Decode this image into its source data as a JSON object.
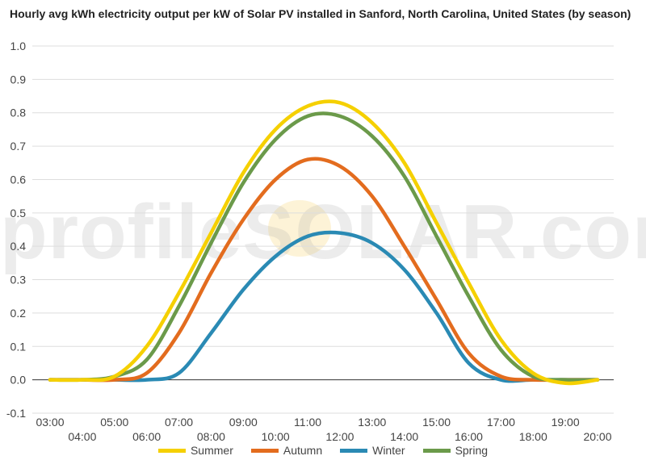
{
  "chart_data": {
    "type": "line",
    "title": "Hourly avg kWh electricity output per kW of Solar PV installed in Sanford, North Carolina, United States (by season)",
    "watermark": "profileSOLAR.com",
    "xlabel": "",
    "ylabel": "",
    "ylim": [
      -0.1,
      1.0
    ],
    "yticks": [
      "1.0",
      "0.9",
      "0.8",
      "0.7",
      "0.6",
      "0.5",
      "0.4",
      "0.3",
      "0.2",
      "0.1",
      "0.0",
      "-0.1"
    ],
    "x": [
      "03:00",
      "04:00",
      "05:00",
      "06:00",
      "07:00",
      "08:00",
      "09:00",
      "10:00",
      "11:00",
      "12:00",
      "13:00",
      "14:00",
      "15:00",
      "16:00",
      "17:00",
      "18:00",
      "19:00",
      "20:00"
    ],
    "grid": true,
    "legend_position": "bottom",
    "series": [
      {
        "name": "Summer",
        "color": "#f5d000",
        "values": [
          0.0,
          0.0,
          0.01,
          0.1,
          0.26,
          0.44,
          0.62,
          0.75,
          0.82,
          0.83,
          0.77,
          0.65,
          0.47,
          0.29,
          0.12,
          0.02,
          -0.01,
          0.0
        ]
      },
      {
        "name": "Autumn",
        "color": "#e36c1e",
        "values": [
          0.0,
          0.0,
          0.0,
          0.02,
          0.14,
          0.32,
          0.48,
          0.6,
          0.66,
          0.64,
          0.55,
          0.4,
          0.24,
          0.08,
          0.01,
          0.0,
          0.0,
          0.0
        ]
      },
      {
        "name": "Winter",
        "color": "#2a8ab4",
        "values": [
          0.0,
          0.0,
          0.0,
          0.0,
          0.02,
          0.14,
          0.27,
          0.37,
          0.43,
          0.44,
          0.41,
          0.33,
          0.2,
          0.05,
          0.0,
          0.0,
          0.0,
          0.0
        ]
      },
      {
        "name": "Spring",
        "color": "#6b9a4a",
        "values": [
          0.0,
          0.0,
          0.01,
          0.06,
          0.22,
          0.41,
          0.59,
          0.72,
          0.79,
          0.79,
          0.73,
          0.61,
          0.43,
          0.25,
          0.09,
          0.01,
          0.0,
          0.0
        ]
      }
    ]
  }
}
